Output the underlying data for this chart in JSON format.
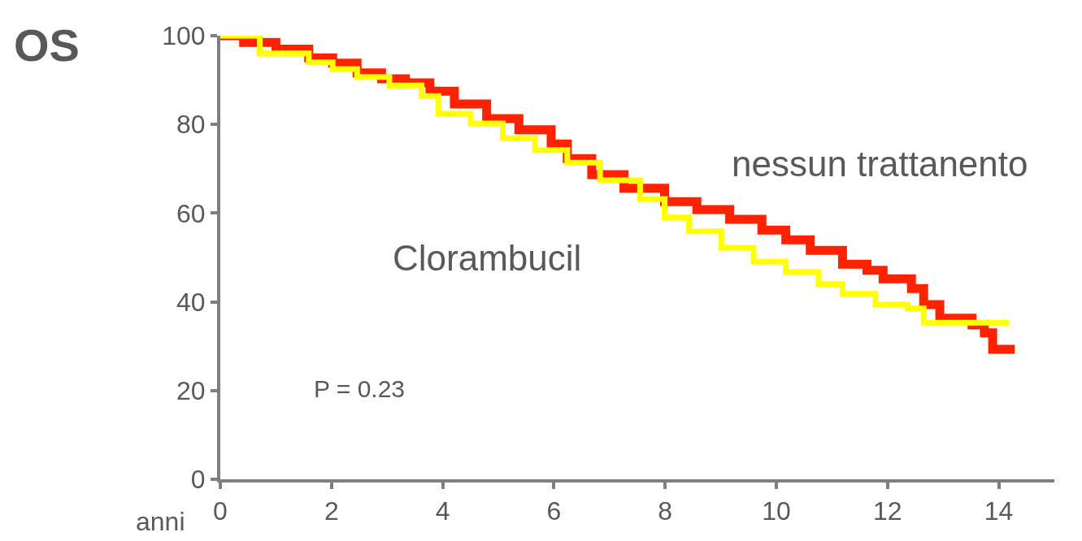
{
  "chart_data": {
    "type": "step",
    "title": "OS",
    "xlabel": "anni",
    "xlim": [
      0,
      15
    ],
    "xticks": [
      0,
      2,
      4,
      6,
      8,
      10,
      12,
      14
    ],
    "ylim": [
      0,
      100
    ],
    "yticks": [
      0,
      20,
      40,
      60,
      80,
      100
    ],
    "legend": false,
    "marker": "none",
    "line_style": "solid",
    "annotations": [
      "P = 0.23"
    ],
    "series": [
      {
        "name": "nessun trattanento",
        "color": "#ff2200",
        "x": [
          0,
          0.42,
          1.0,
          1.59,
          2.02,
          2.46,
          2.9,
          3.33,
          3.77,
          4.21,
          4.79,
          5.37,
          5.95,
          6.24,
          6.68,
          7.26,
          7.99,
          8.57,
          9.16,
          9.74,
          10.17,
          10.61,
          11.19,
          11.63,
          11.92,
          12.43,
          12.65,
          12.94,
          13.52,
          13.74,
          13.89,
          14.29
        ],
        "values": [
          100,
          98.5,
          97,
          95,
          93.8,
          91.6,
          90.3,
          89.4,
          87.5,
          84.6,
          81.3,
          78.8,
          75.6,
          72.3,
          68.7,
          65.6,
          62.6,
          60.8,
          58.6,
          56.2,
          54,
          51.6,
          48.5,
          47.1,
          45.2,
          43,
          39.4,
          36.3,
          34.8,
          33,
          29.3,
          29.3
        ]
      },
      {
        "name": "Clorambucil",
        "color": "#ffff00",
        "x": [
          0,
          0.71,
          1.59,
          2.02,
          2.46,
          3.04,
          3.62,
          3.92,
          4.5,
          5.08,
          5.66,
          6.24,
          6.83,
          7.55,
          7.99,
          8.43,
          9.01,
          9.59,
          10.17,
          10.76,
          11.19,
          11.78,
          12.36,
          12.65,
          14.18
        ],
        "values": [
          100,
          96,
          94,
          92.5,
          90.7,
          88.8,
          86.4,
          82.4,
          80.2,
          76.9,
          74.2,
          71.4,
          67.4,
          63.2,
          59,
          55.9,
          52.2,
          49.1,
          46.7,
          44,
          41.8,
          39.4,
          38.5,
          35.3,
          35.3
        ]
      }
    ]
  }
}
